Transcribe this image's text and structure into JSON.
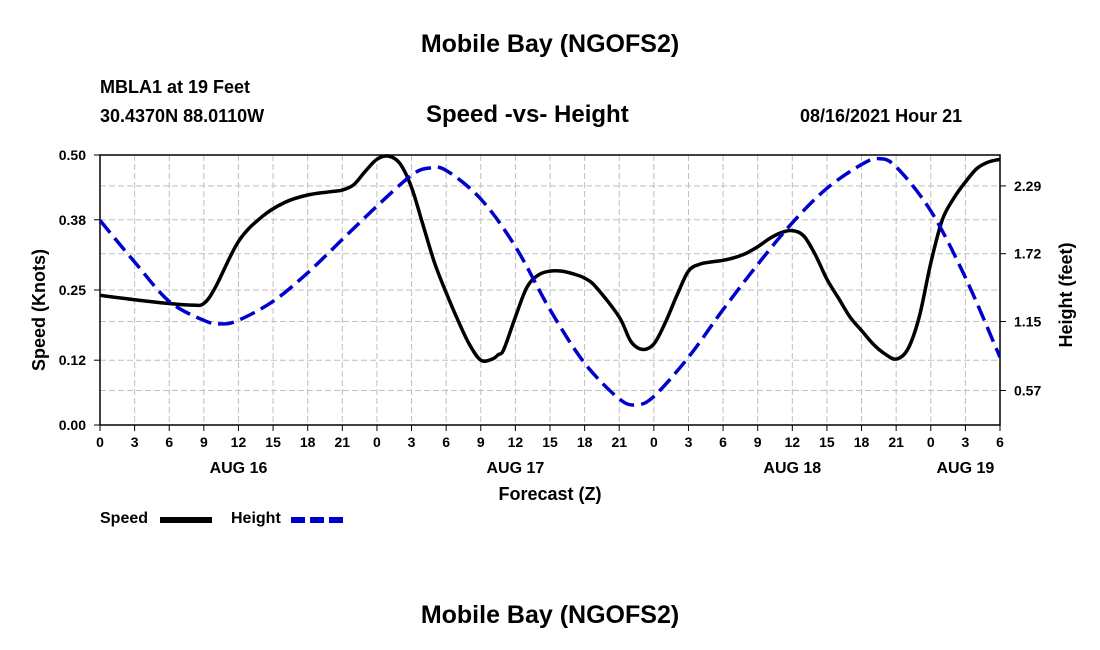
{
  "header": {
    "title": "Mobile Bay (NGOFS2)",
    "station": "MBLA1 at 19 Feet",
    "coords": "30.4370N  88.0110W",
    "subtitle": "Speed -vs- Height",
    "datetime": "08/16/2021 Hour 21"
  },
  "footer": {
    "title": "Mobile Bay (NGOFS2)"
  },
  "legend": {
    "speed_label": "Speed",
    "height_label": "Height"
  },
  "colors": {
    "speed": "#000000",
    "height": "#0000cc",
    "grid": "#bfbfbf"
  },
  "chart_data": {
    "type": "line",
    "title": "Speed -vs- Height",
    "xlabel": "Forecast (Z)",
    "ylabel": "Speed (Knots)",
    "y2label": "Height (feet)",
    "x_unit": "hours since 08/16 00Z",
    "xlim": [
      0,
      78
    ],
    "ylim": [
      0,
      0.5
    ],
    "y2lim": [
      0.28,
      2.55
    ],
    "grid": true,
    "legend_position": "bottom-left",
    "x_ticks": [
      0,
      3,
      6,
      9,
      12,
      15,
      18,
      21,
      24,
      27,
      30,
      33,
      36,
      39,
      42,
      45,
      48,
      51,
      54,
      57,
      60,
      63,
      66,
      69,
      72,
      75,
      78
    ],
    "x_tick_labels": [
      "0",
      "3",
      "6",
      "9",
      "12",
      "15",
      "18",
      "21",
      "0",
      "3",
      "6",
      "9",
      "12",
      "15",
      "18",
      "21",
      "0",
      "3",
      "6",
      "9",
      "12",
      "15",
      "18",
      "21",
      "0",
      "3",
      "6"
    ],
    "day_labels": [
      {
        "x": 12,
        "label": "AUG 16"
      },
      {
        "x": 36,
        "label": "AUG 17"
      },
      {
        "x": 60,
        "label": "AUG 18"
      },
      {
        "x": 75,
        "label": "AUG 19"
      }
    ],
    "y_ticks": [
      0.0,
      0.12,
      0.25,
      0.38,
      0.5
    ],
    "y_tick_labels": [
      "0.00",
      "0.12",
      "0.25",
      "0.38",
      "0.50"
    ],
    "y2_ticks": [
      0.57,
      1.15,
      1.72,
      2.29
    ],
    "y2_tick_labels": [
      "0.57",
      "1.15",
      "1.72",
      "2.29"
    ],
    "series": [
      {
        "name": "Speed",
        "axis": "left",
        "style": "solid",
        "x": [
          0,
          3,
          6,
          8,
          9,
          10,
          12,
          14,
          16,
          18,
          20,
          21,
          22,
          23,
          24,
          25,
          26,
          27,
          28,
          29,
          30,
          31,
          32,
          33,
          34,
          34.5,
          35,
          36,
          37,
          38,
          39,
          40,
          41,
          42,
          43,
          45,
          46,
          47,
          48,
          49,
          50,
          51,
          52,
          53,
          54,
          55,
          56,
          57,
          58,
          59,
          60,
          61,
          62,
          63,
          64,
          65,
          66,
          67,
          68,
          69,
          70,
          71,
          72,
          73,
          74,
          75,
          76,
          77,
          78
        ],
        "values": [
          0.24,
          0.232,
          0.225,
          0.222,
          0.225,
          0.255,
          0.34,
          0.385,
          0.412,
          0.426,
          0.432,
          0.435,
          0.445,
          0.47,
          0.492,
          0.498,
          0.484,
          0.44,
          0.37,
          0.3,
          0.245,
          0.195,
          0.15,
          0.12,
          0.122,
          0.13,
          0.14,
          0.2,
          0.255,
          0.278,
          0.285,
          0.285,
          0.28,
          0.272,
          0.255,
          0.2,
          0.155,
          0.14,
          0.15,
          0.19,
          0.24,
          0.285,
          0.298,
          0.302,
          0.305,
          0.31,
          0.318,
          0.33,
          0.345,
          0.356,
          0.36,
          0.35,
          0.315,
          0.27,
          0.235,
          0.2,
          0.175,
          0.15,
          0.132,
          0.122,
          0.14,
          0.2,
          0.3,
          0.38,
          0.42,
          0.45,
          0.475,
          0.487,
          0.492
        ]
      },
      {
        "name": "Height",
        "axis": "right",
        "style": "dashed",
        "x": [
          0,
          3,
          6,
          9,
          10.5,
          12,
          15,
          18,
          21,
          24,
          27,
          28.5,
          30,
          33,
          36,
          39,
          42,
          45,
          46.5,
          48,
          51,
          54,
          57,
          60,
          63,
          66,
          67.5,
          69,
          72,
          75,
          78
        ],
        "values": [
          2.0,
          1.65,
          1.32,
          1.16,
          1.13,
          1.16,
          1.32,
          1.56,
          1.84,
          2.12,
          2.38,
          2.44,
          2.42,
          2.18,
          1.78,
          1.25,
          0.8,
          0.5,
          0.45,
          0.52,
          0.85,
          1.25,
          1.63,
          1.98,
          2.27,
          2.47,
          2.52,
          2.45,
          2.08,
          1.52,
          0.85
        ]
      }
    ]
  }
}
